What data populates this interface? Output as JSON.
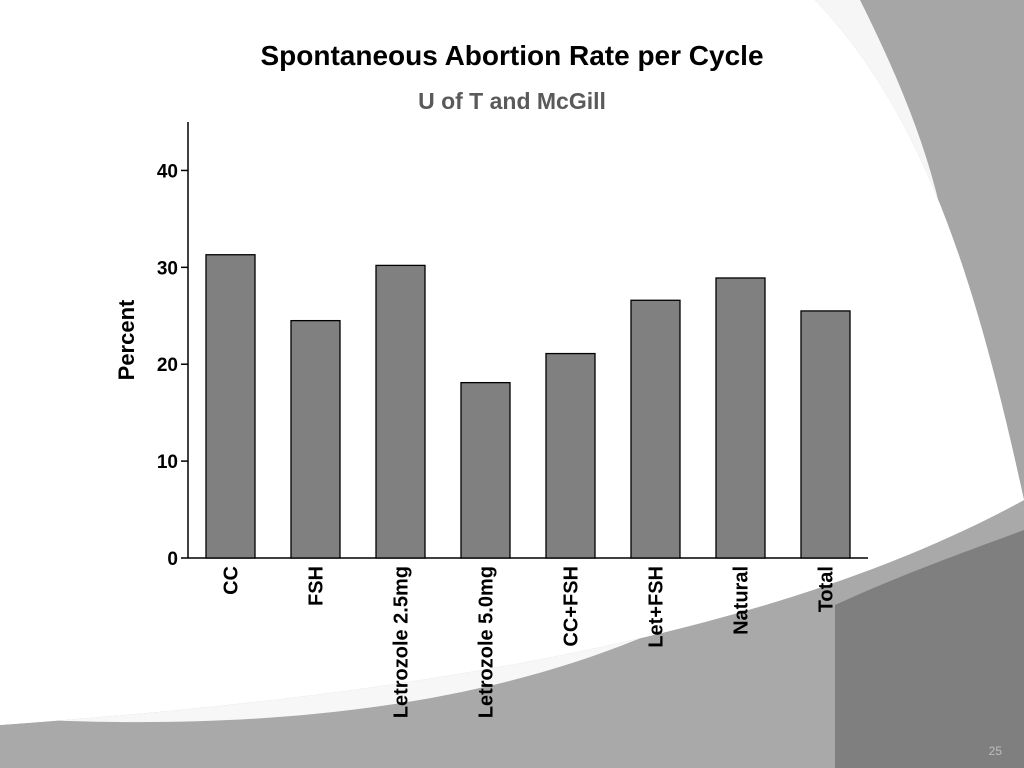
{
  "slide": {
    "number": "25"
  },
  "colors": {
    "bar_fill": "#808080",
    "bar_stroke": "#000000",
    "title": "#000000",
    "subtitle": "#5a5a5a"
  },
  "chart_data": {
    "type": "bar",
    "title": "Spontaneous Abortion Rate per Cycle",
    "subtitle": "U of T and McGill",
    "xlabel": "",
    "ylabel": "Percent",
    "ylim": [
      0,
      45
    ],
    "yticks": [
      0,
      10,
      20,
      30,
      40
    ],
    "grid": false,
    "categories": [
      "CC",
      "FSH",
      "Letrozole 2.5mg",
      "Letrozole 5.0mg",
      "CC+FSH",
      "Let+FSH",
      "Natural",
      "Total"
    ],
    "values": [
      31.3,
      24.5,
      30.2,
      18.1,
      21.1,
      26.6,
      28.9,
      25.5
    ]
  }
}
